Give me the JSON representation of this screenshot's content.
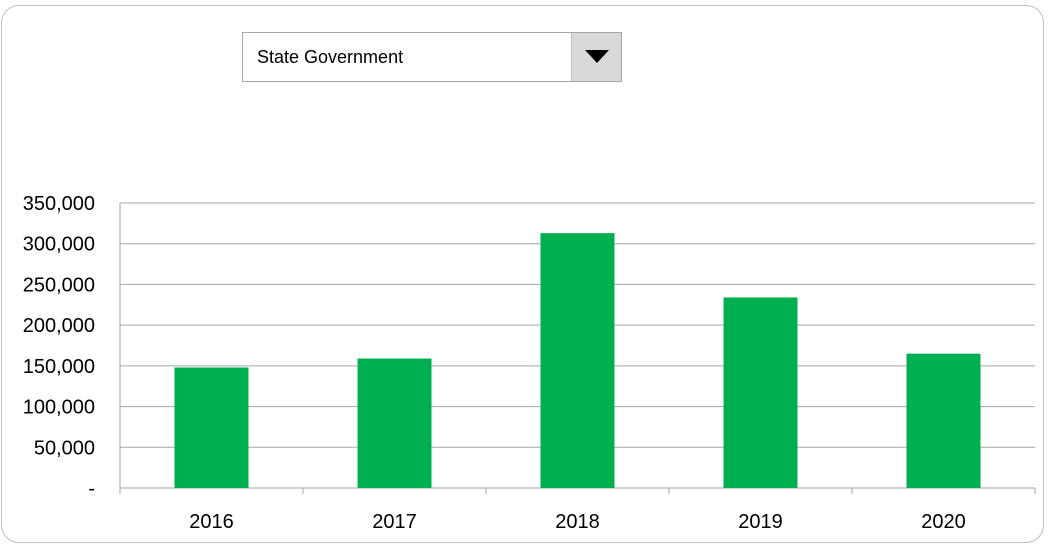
{
  "selector": {
    "value": "State Government",
    "icon": "dropdown-arrow-icon"
  },
  "chart_data": {
    "type": "bar",
    "categories": [
      "2016",
      "2017",
      "2018",
      "2019",
      "2020"
    ],
    "values": [
      148000,
      159000,
      313000,
      234000,
      165000
    ],
    "ylim": [
      0,
      350000
    ],
    "yticks": [
      "-",
      "50,000",
      "100,000",
      "150,000",
      "200,000",
      "250,000",
      "300,000",
      "350,000"
    ],
    "grid": true,
    "legend": "none",
    "bar_color": "#00b050"
  }
}
